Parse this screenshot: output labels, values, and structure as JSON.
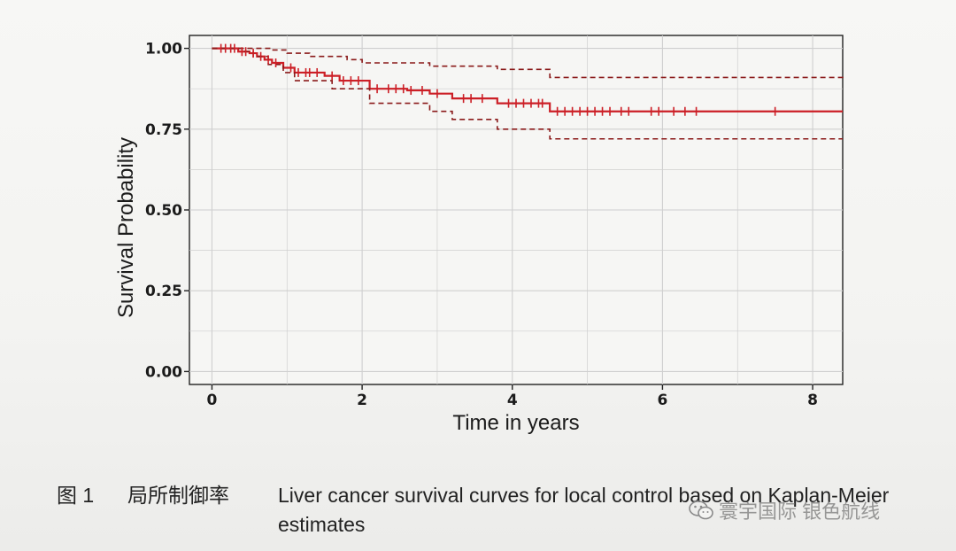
{
  "chart_data": {
    "type": "line",
    "title": "",
    "xlabel": "Time in years",
    "ylabel": "Survival Probability",
    "xlim": [
      -0.3,
      8.4
    ],
    "ylim": [
      -0.04,
      1.04
    ],
    "x_ticks": [
      0,
      2,
      4,
      6,
      8
    ],
    "x_tick_labels": [
      "0",
      "2",
      "4",
      "6",
      "8"
    ],
    "y_ticks": [
      0.0,
      0.25,
      0.5,
      0.75,
      1.0
    ],
    "y_tick_labels": [
      "0.00",
      "0.25",
      "0.50",
      "0.75",
      "1.00"
    ],
    "grid": true,
    "colors": {
      "survival": "#cc1f26",
      "ci": "#8a1a1a",
      "grid": "#cfcfcf",
      "axis": "#222222"
    },
    "series": [
      {
        "role": "estimate",
        "x": [
          0.0,
          0.35,
          0.5,
          0.6,
          0.7,
          0.8,
          0.95,
          1.1,
          1.5,
          1.7,
          2.1,
          2.6,
          2.9,
          3.2,
          3.8,
          4.5,
          8.4
        ],
        "y": [
          1.0,
          0.99,
          0.985,
          0.975,
          0.965,
          0.955,
          0.94,
          0.925,
          0.915,
          0.9,
          0.875,
          0.87,
          0.86,
          0.845,
          0.83,
          0.805,
          0.805
        ]
      },
      {
        "role": "upper_ci",
        "x": [
          0.0,
          0.65,
          0.8,
          1.0,
          1.3,
          1.8,
          2.0,
          2.9,
          3.8,
          4.5,
          8.4
        ],
        "y": [
          1.0,
          1.0,
          0.995,
          0.985,
          0.975,
          0.965,
          0.955,
          0.945,
          0.935,
          0.91,
          0.9
        ]
      },
      {
        "role": "lower_ci",
        "x": [
          0.0,
          0.4,
          0.55,
          0.75,
          0.95,
          1.1,
          1.6,
          2.1,
          2.9,
          3.2,
          3.8,
          4.5,
          8.4
        ],
        "y": [
          1.0,
          0.99,
          0.975,
          0.95,
          0.925,
          0.9,
          0.875,
          0.83,
          0.805,
          0.78,
          0.75,
          0.72,
          0.72
        ]
      }
    ],
    "censor_times": [
      0.12,
      0.18,
      0.25,
      0.3,
      0.4,
      0.45,
      0.55,
      0.65,
      0.75,
      0.85,
      1.05,
      1.15,
      1.25,
      1.3,
      1.4,
      1.6,
      1.75,
      1.85,
      1.95,
      2.2,
      2.35,
      2.45,
      2.55,
      2.65,
      2.8,
      3.0,
      3.35,
      3.45,
      3.6,
      3.95,
      4.05,
      4.15,
      4.25,
      4.35,
      4.4,
      4.6,
      4.7,
      4.8,
      4.9,
      5.0,
      5.1,
      5.2,
      5.3,
      5.45,
      5.55,
      5.85,
      5.95,
      6.15,
      6.3,
      6.45,
      7.5
    ]
  },
  "caption": {
    "figure_number": "图 1",
    "chinese_title": "局所制御率",
    "english_title": "Liver cancer survival curves for local control based on Kaplan-Meier estimates"
  },
  "watermark": {
    "icon": "wechat-icon",
    "text": "寰宇国际 银色航线"
  }
}
